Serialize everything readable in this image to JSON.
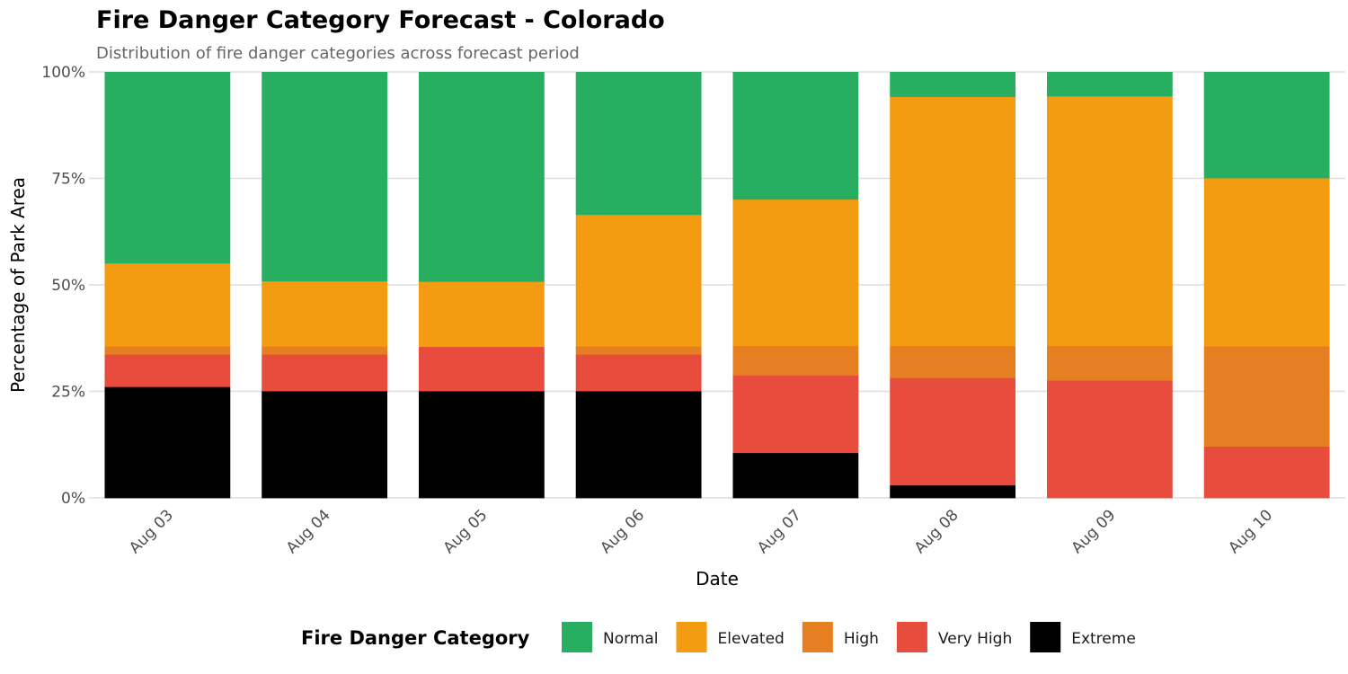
{
  "chart_data": {
    "type": "bar",
    "stacked": true,
    "percent": true,
    "title": "Fire Danger Category Forecast - Colorado",
    "subtitle": "Distribution of fire danger categories across forecast period",
    "xlabel": "Date",
    "ylabel": "Percentage of Park Area",
    "ylim": [
      0,
      100
    ],
    "yticks": [
      "0%",
      "25%",
      "50%",
      "75%",
      "100%"
    ],
    "ytick_values": [
      0,
      25,
      50,
      75,
      100
    ],
    "grid": true,
    "legend_title": "Fire Danger Category",
    "legend_position": "bottom",
    "categories": [
      "Aug 03",
      "Aug 04",
      "Aug 05",
      "Aug 06",
      "Aug 07",
      "Aug 08",
      "Aug 09",
      "Aug 10"
    ],
    "series": [
      {
        "name": "Extreme",
        "color": "#000000",
        "values": [
          26.1,
          25.1,
          25.1,
          25.1,
          10.6,
          3.0,
          0.0,
          0.0
        ]
      },
      {
        "name": "Very High",
        "color": "#e74c3c",
        "values": [
          7.6,
          8.6,
          10.4,
          8.6,
          18.2,
          25.2,
          27.6,
          12.1
        ]
      },
      {
        "name": "High",
        "color": "#e67e22",
        "values": [
          1.9,
          1.9,
          0.0,
          1.9,
          6.9,
          7.5,
          8.1,
          23.5
        ]
      },
      {
        "name": "Elevated",
        "color": "#f39c12",
        "values": [
          19.5,
          15.3,
          15.3,
          30.9,
          34.4,
          58.5,
          58.6,
          39.5
        ]
      },
      {
        "name": "Normal",
        "color": "#27ae60",
        "values": [
          44.9,
          49.1,
          49.2,
          33.5,
          29.9,
          5.8,
          5.7,
          24.9
        ]
      }
    ],
    "legend_order": [
      "Normal",
      "Elevated",
      "High",
      "Very High",
      "Extreme"
    ]
  }
}
